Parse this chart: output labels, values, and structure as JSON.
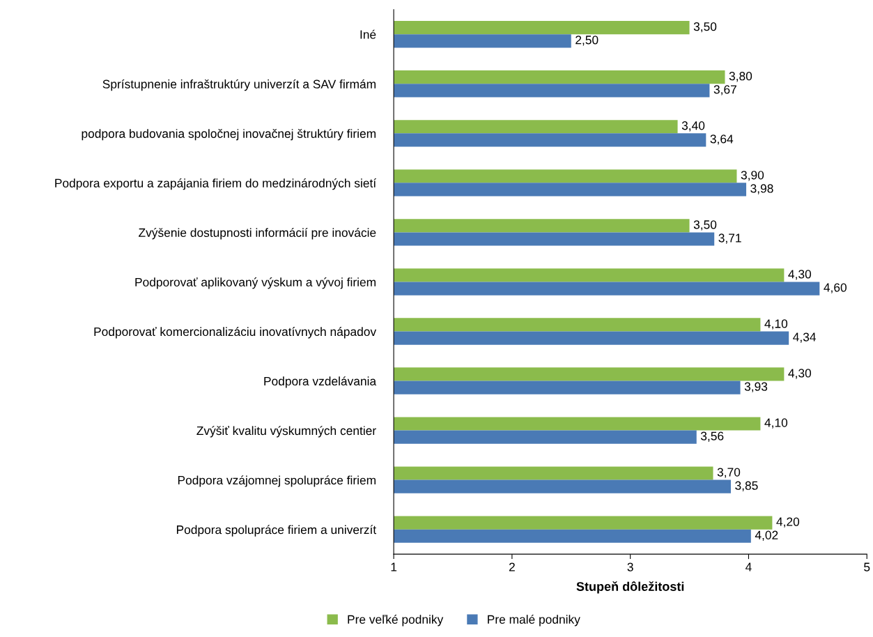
{
  "chart_data": {
    "type": "bar",
    "orientation": "horizontal",
    "xlabel": "Stupeň dôležitosti",
    "categories": [
      "Iné",
      "Sprístupnenie infraštruktúry univerzít a SAV firmám",
      "podpora budovania spoločnej inovačnej štruktúry firiem",
      "Podpora exportu a zapájania firiem do medzinárodných sietí",
      "Zvýšenie dostupnosti informácií pre inovácie",
      "Podporovať aplikovaný výskum a vývoj firiem",
      "Podporovať komercionalizáciu inovatívnych nápadov",
      "Podpora vzdelávania",
      "Zvýšiť kvalitu výskumných centier",
      "Podpora vzájomnej spolupráce firiem",
      "Podpora spolupráce firiem a univerzít"
    ],
    "series": [
      {
        "name": "Pre veľké podniky",
        "color": "#8bbb4c",
        "values": [
          3.5,
          3.8,
          3.4,
          3.9,
          3.5,
          4.3,
          4.1,
          4.3,
          4.1,
          3.7,
          4.2
        ],
        "value_labels": [
          "3,50",
          "3,80",
          "3,40",
          "3,90",
          "3,50",
          "4,30",
          "4,10",
          "4,30",
          "4,10",
          "3,70",
          "4,20"
        ]
      },
      {
        "name": "Pre malé podniky",
        "color": "#4a7ab5",
        "values": [
          2.5,
          3.67,
          3.64,
          3.98,
          3.71,
          4.6,
          4.34,
          3.93,
          3.56,
          3.85,
          4.02
        ],
        "value_labels": [
          "2,50",
          "3,67",
          "3,64",
          "3,98",
          "3,71",
          "4,60",
          "4,34",
          "3,93",
          "3,56",
          "3,85",
          "4,02"
        ]
      }
    ],
    "xlim": [
      1,
      5
    ],
    "xticks": [
      1,
      2,
      3,
      4,
      5
    ],
    "grid": false,
    "legend": "bottom"
  }
}
